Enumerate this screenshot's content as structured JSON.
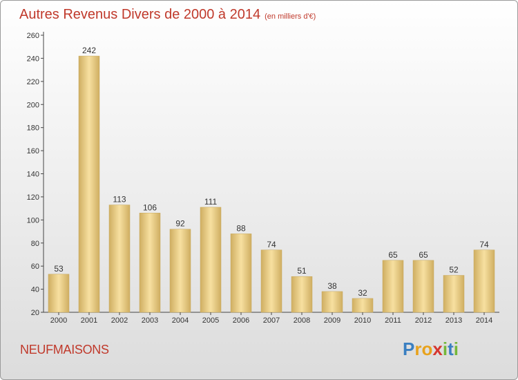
{
  "title": "Autres Revenus Divers de 2000 à 2014",
  "subtitle": "(en milliers d'€)",
  "commune": "NEUFMAISONS",
  "brand": {
    "letters": [
      "P",
      "r",
      "o",
      "x",
      "i",
      "t",
      "i"
    ],
    "colors": [
      "#3a7fc1",
      "#e8a21c",
      "#e8a21c",
      "#d6362f",
      "#74b739",
      "#3a7fc1",
      "#74b739"
    ]
  },
  "colors": {
    "title": "#c0392b",
    "bar_light": "#f7e0a0",
    "bar_dark": "#cfae62"
  },
  "chart_data": {
    "type": "bar",
    "title": "Autres Revenus Divers de 2000 à 2014",
    "ylabel": "en milliers d'€",
    "categories": [
      "2000",
      "2001",
      "2002",
      "2003",
      "2004",
      "2005",
      "2006",
      "2007",
      "2008",
      "2009",
      "2010",
      "2011",
      "2012",
      "2013",
      "2014"
    ],
    "values": [
      53,
      242,
      113,
      106,
      92,
      111,
      88,
      74,
      51,
      38,
      32,
      65,
      65,
      52,
      74
    ],
    "ylim": [
      20,
      260
    ],
    "yticks": [
      20,
      40,
      60,
      80,
      100,
      120,
      140,
      160,
      180,
      200,
      220,
      240,
      260
    ],
    "grid": false
  }
}
